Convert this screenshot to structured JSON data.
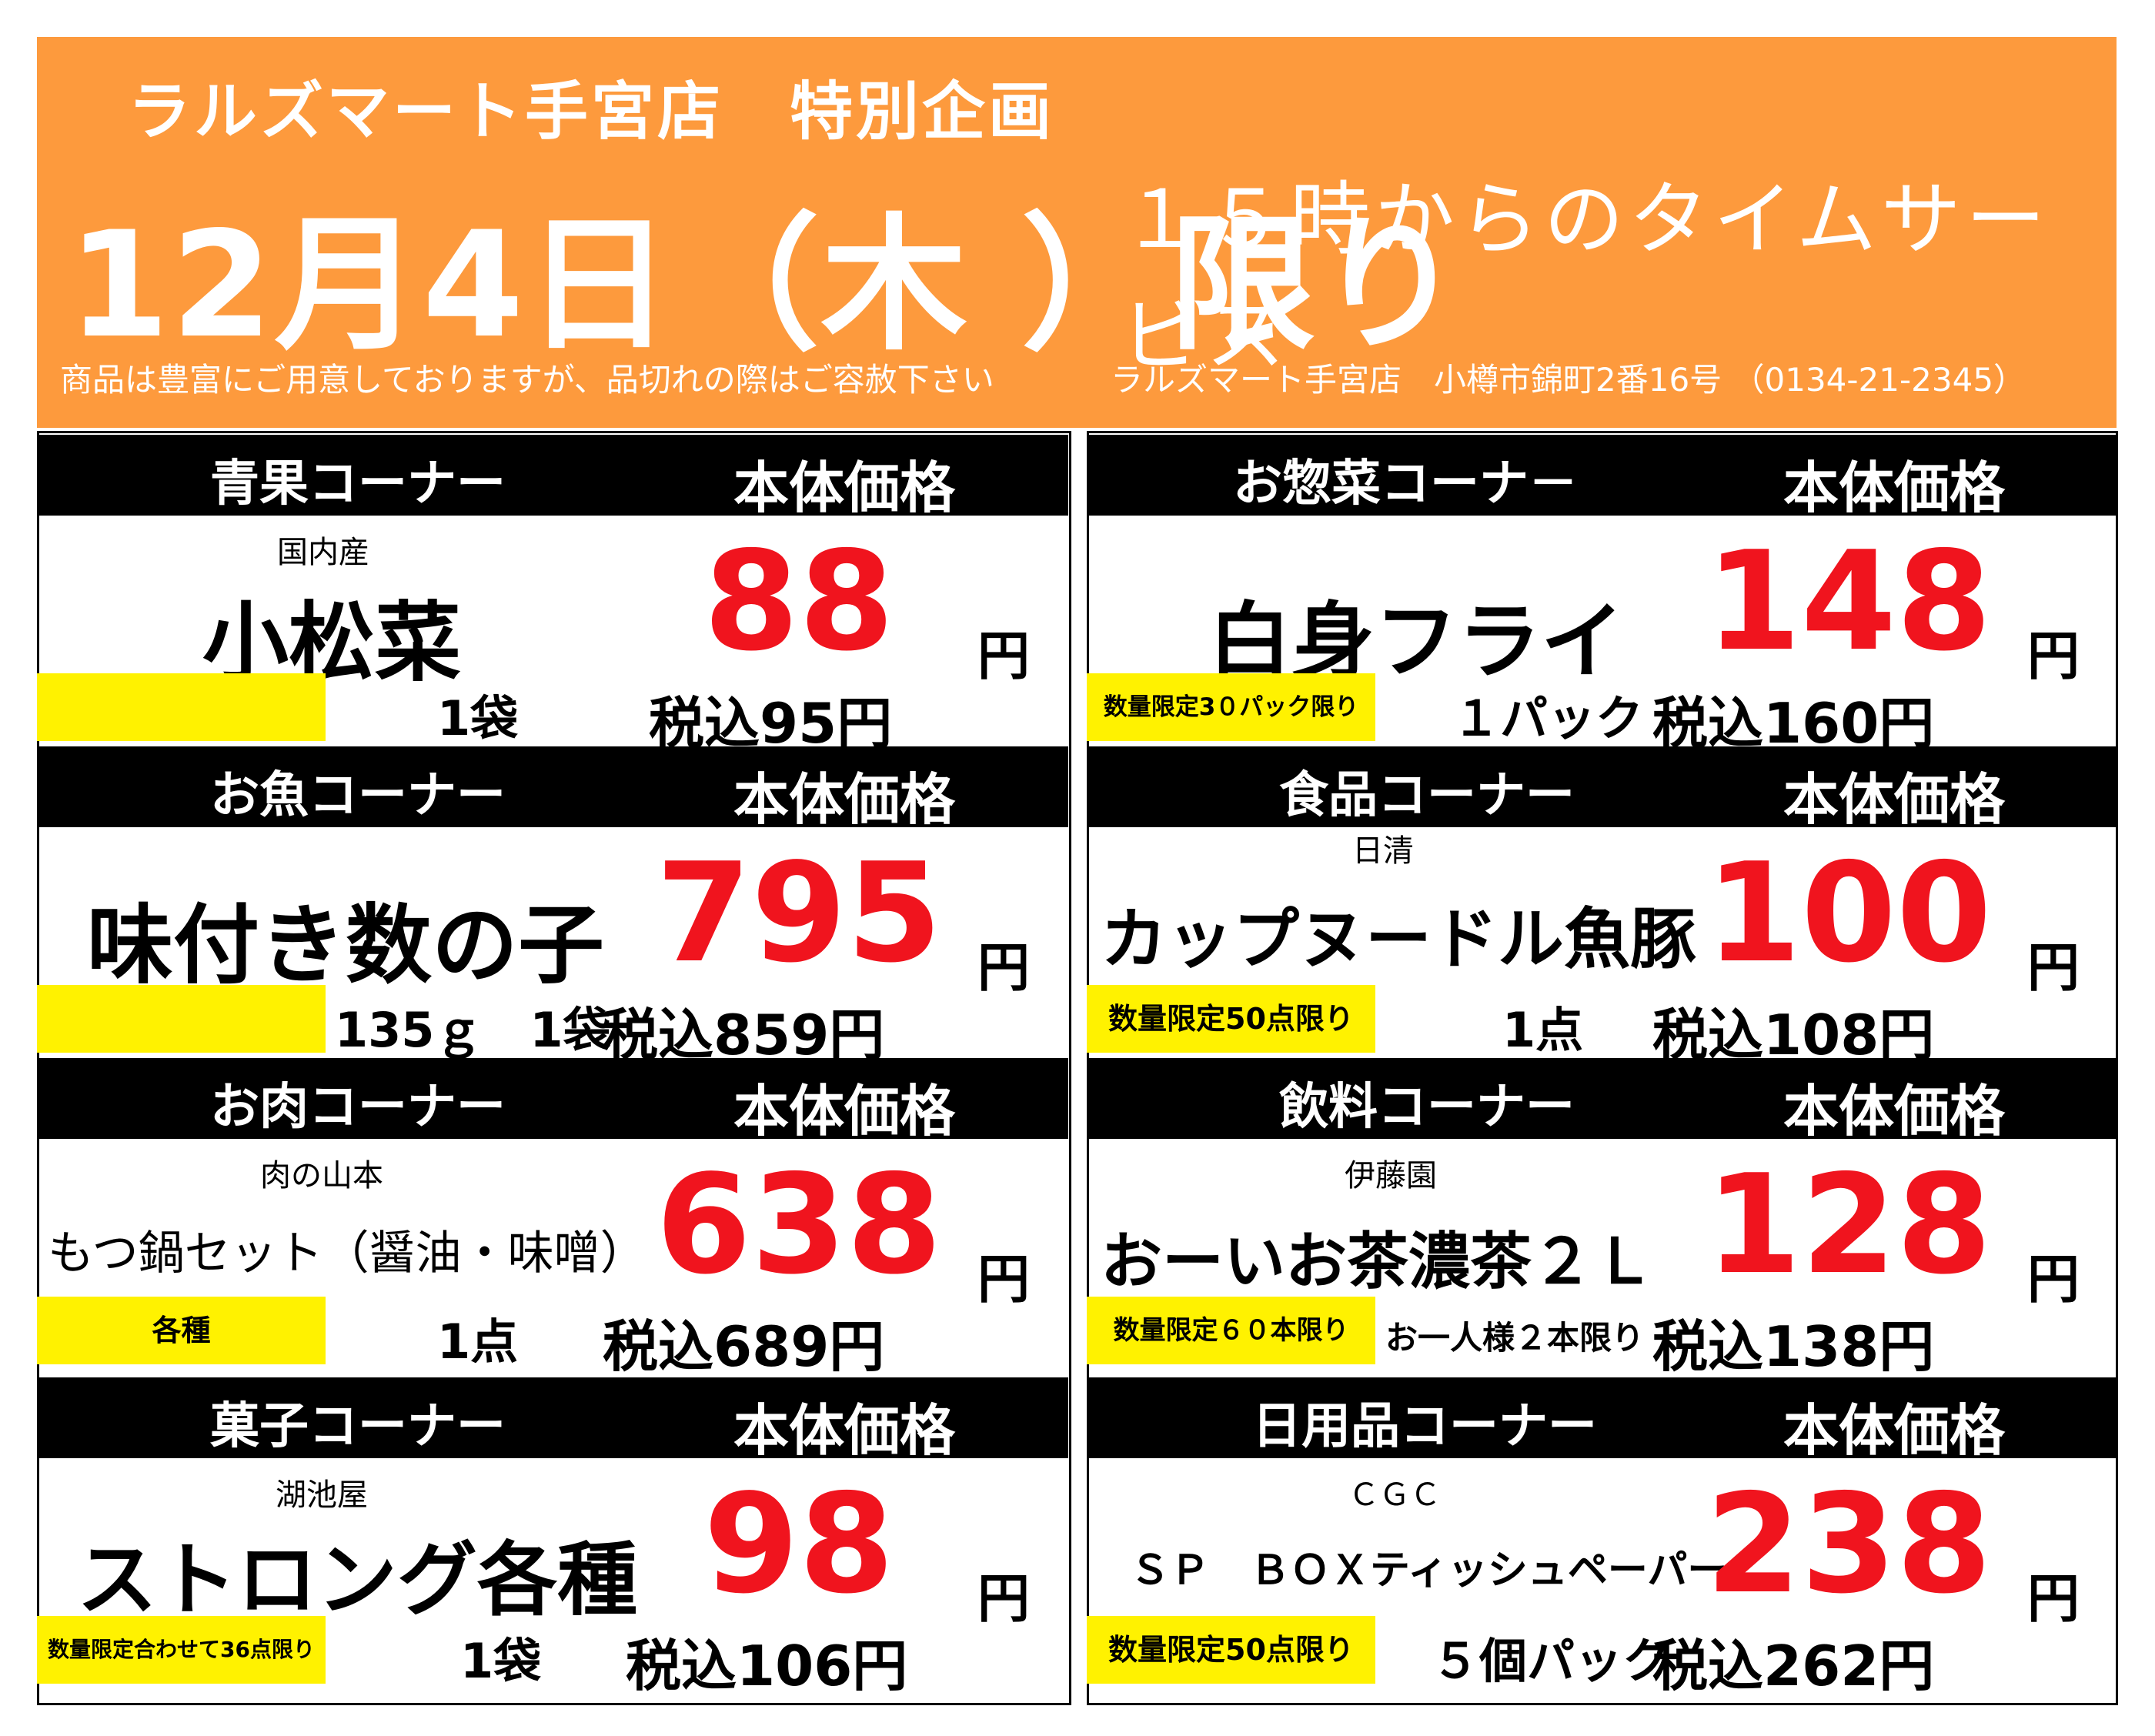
{
  "banner": {
    "store_title": "ラルズマート手宮店　特別企画",
    "date": "12月4日（木 ）限り",
    "time_service": "１５時からのタイムサービス",
    "note": "商品は豊富にご用意しておりますが、品切れの際はご容赦下さい",
    "address": "ラルズマート手宮店　小樽市錦町2番16号 （0134-21-2345）",
    "color": "#fd9a3d"
  },
  "colors": {
    "price": "#f0141e",
    "tag": "#fff200",
    "header": "#000000"
  },
  "panels": [
    {
      "category": "青果コーナー",
      "price_label": "本体価格",
      "maker": "国内産",
      "name": "小松菜",
      "price": "88",
      "yen": "円",
      "tag": "",
      "qty": "1袋",
      "tax_price": "税込95円"
    },
    {
      "category": "お惣菜コーナ－",
      "price_label": "本体価格",
      "maker": "",
      "name": "白身フライ",
      "price": "148",
      "yen": "円",
      "tag": "数量限定3０パック限り",
      "qty": "１パック",
      "tax_price": "税込160円"
    },
    {
      "category": "お魚コーナー",
      "price_label": "本体価格",
      "maker": "",
      "name": "味付き数の子",
      "price": "795",
      "yen": "円",
      "tag": "",
      "qty": "135ｇ　1袋",
      "tax_price": "税込859円"
    },
    {
      "category": "食品コーナー",
      "price_label": "本体価格",
      "maker": "日清",
      "name": "カップヌードル魚豚",
      "price": "100",
      "yen": "円",
      "tag": "数量限定50点限り",
      "qty": "1点",
      "tax_price": "税込108円"
    },
    {
      "category": "お肉コーナー",
      "price_label": "本体価格",
      "maker": "肉の山本",
      "name": "もつ鍋セット（醤油・味噌）",
      "price": "638",
      "yen": "円",
      "tag": "各種",
      "qty": "1点",
      "tax_price": "税込689円"
    },
    {
      "category": "飲料コーナー",
      "price_label": "本体価格",
      "maker": "伊藤園",
      "name": "おーいお茶濃茶２Ｌ",
      "price": "128",
      "yen": "円",
      "tag": "数量限定６０本限り",
      "qty": "お一人様２本限り",
      "tax_price": "税込138円"
    },
    {
      "category": "菓子コーナー",
      "price_label": "本体価格",
      "maker": "湖池屋",
      "name": "ストロング各種",
      "price": "98",
      "yen": "円",
      "tag": "数量限定合わせて36点限り",
      "qty": "1袋",
      "tax_price": "税込106円"
    },
    {
      "category": "日用品コーナー",
      "price_label": "本体価格",
      "maker": "ＣＧＣ",
      "name": "ＳＰ　ＢＯＸティッシュペーパー",
      "price": "238",
      "yen": "円",
      "tag": "数量限定50点限り",
      "qty": "５個パック",
      "tax_price": "税込262円"
    }
  ]
}
